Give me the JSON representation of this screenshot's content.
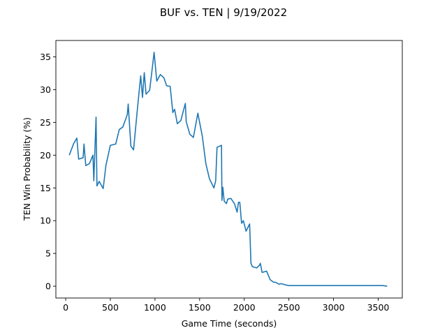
{
  "chart_data": {
    "type": "line",
    "title": "BUF vs. TEN | 9/19/2022",
    "xlabel": "Game Time (seconds)",
    "ylabel": "TEN Win Probability (%)",
    "xlim": [
      -110,
      3770
    ],
    "ylim": [
      -1.8,
      37.5
    ],
    "xticks": [
      0,
      500,
      1000,
      1500,
      2000,
      2500,
      3000,
      3500
    ],
    "yticks": [
      0,
      5,
      10,
      15,
      20,
      25,
      30,
      35
    ],
    "grid": false,
    "color": "#1f77b4",
    "series": [
      {
        "x": [
          40,
          90,
          125,
          145,
          195,
          205,
          225,
          265,
          305,
          315,
          340,
          350,
          375,
          420,
          450,
          500,
          560,
          600,
          640,
          690,
          700,
          730,
          760,
          800,
          840,
          860,
          880,
          900,
          940,
          970,
          990,
          1020,
          1060,
          1100,
          1130,
          1170,
          1200,
          1220,
          1250,
          1290,
          1340,
          1350,
          1390,
          1430,
          1480,
          1530,
          1570,
          1610,
          1660,
          1680,
          1695,
          1745,
          1750,
          1760,
          1775,
          1800,
          1815,
          1850,
          1890,
          1920,
          1935,
          1950,
          1970,
          1990,
          2020,
          2060,
          2075,
          2090,
          2110,
          2140,
          2170,
          2180,
          2200,
          2250,
          2290,
          2330,
          2350,
          2390,
          2410,
          2440,
          2460,
          2480,
          2500,
          2600,
          3000,
          3550,
          3600
        ],
        "y": [
          20.0,
          21.8,
          22.6,
          19.4,
          19.6,
          21.7,
          18.4,
          18.7,
          20.0,
          16.1,
          25.8,
          15.3,
          16.0,
          14.9,
          18.4,
          21.5,
          21.7,
          23.9,
          24.3,
          26.2,
          27.8,
          21.4,
          20.8,
          26.6,
          32.1,
          28.8,
          32.6,
          29.3,
          29.9,
          33.3,
          35.7,
          31.3,
          32.3,
          31.8,
          30.6,
          30.5,
          26.5,
          27.0,
          24.8,
          25.3,
          27.9,
          25.1,
          23.2,
          22.7,
          26.4,
          22.9,
          18.7,
          16.4,
          15.0,
          16.1,
          21.2,
          21.5,
          13.1,
          15.1,
          13.0,
          12.6,
          13.3,
          13.4,
          12.6,
          11.3,
          12.8,
          12.8,
          9.6,
          10.0,
          8.4,
          9.5,
          3.5,
          3.0,
          2.9,
          2.8,
          3.2,
          3.5,
          2.1,
          2.3,
          1.0,
          0.6,
          0.6,
          0.3,
          0.4,
          0.3,
          0.2,
          0.15,
          0.1,
          0.1,
          0.1,
          0.1,
          0.0
        ]
      }
    ]
  }
}
